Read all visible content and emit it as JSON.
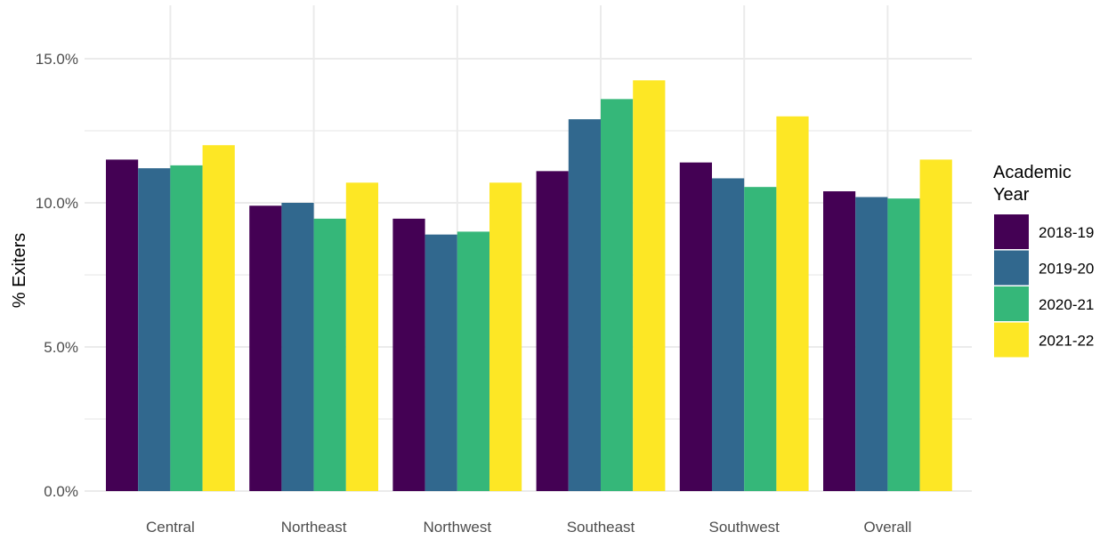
{
  "chart_data": {
    "type": "bar",
    "title": "",
    "xlabel": "",
    "ylabel": "% Exiters",
    "ylim": [
      0,
      16.5
    ],
    "y_ticks": [
      0,
      5,
      10,
      15
    ],
    "y_tick_labels": [
      "0.0%",
      "5.0%",
      "10.0%",
      "15.0%"
    ],
    "grid": true,
    "legend_position": "right",
    "legend_title": [
      "Academic",
      "Year"
    ],
    "categories": [
      "Central",
      "Northeast",
      "Northwest",
      "Southeast",
      "Southwest",
      "Overall"
    ],
    "series": [
      {
        "name": "2018-19",
        "color": "#440154",
        "values": [
          11.5,
          9.9,
          9.45,
          11.1,
          11.4,
          10.4
        ]
      },
      {
        "name": "2019-20",
        "color": "#31688E",
        "values": [
          11.2,
          10.0,
          8.9,
          12.9,
          10.85,
          10.2
        ]
      },
      {
        "name": "2020-21",
        "color": "#35B779",
        "values": [
          11.3,
          9.45,
          9.0,
          13.6,
          10.55,
          10.15
        ]
      },
      {
        "name": "2021-22",
        "color": "#FDE725",
        "values": [
          12.0,
          10.7,
          10.7,
          14.25,
          13.0,
          11.5
        ]
      }
    ]
  }
}
